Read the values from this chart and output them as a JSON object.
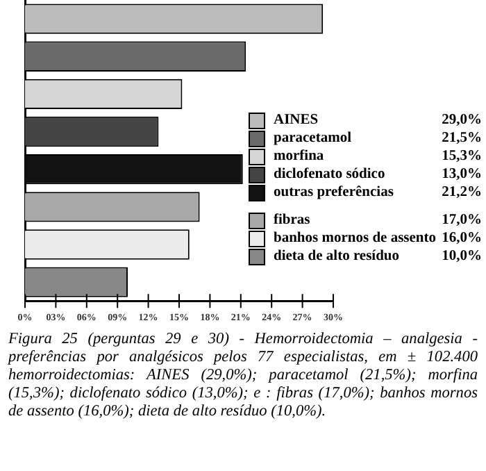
{
  "chart_data": {
    "type": "bar",
    "orientation": "horizontal",
    "categories": [
      null,
      null,
      null,
      null,
      null,
      null,
      null,
      null
    ],
    "series": [
      {
        "name": "AINES",
        "color": "#bcbcbc",
        "values": [
          29.0,
          null,
          null,
          null,
          null,
          null,
          null,
          null
        ]
      },
      {
        "name": "paracetamol",
        "color": "#6a6a6a",
        "values": [
          null,
          21.5,
          null,
          null,
          null,
          null,
          null,
          null
        ]
      },
      {
        "name": "morfina",
        "color": "#d6d6d6",
        "values": [
          null,
          null,
          15.3,
          null,
          null,
          null,
          null,
          null
        ]
      },
      {
        "name": "diclofenato sódico",
        "color": "#444444",
        "values": [
          null,
          null,
          null,
          13.0,
          null,
          null,
          null,
          null
        ]
      },
      {
        "name": "outras preferências",
        "color": "#111111",
        "values": [
          null,
          null,
          null,
          null,
          21.2,
          null,
          null,
          null
        ]
      },
      {
        "name": "fibras",
        "color": "#a8a8a8",
        "values": [
          null,
          null,
          null,
          null,
          null,
          17.0,
          null,
          null
        ]
      },
      {
        "name": "banhos mornos de assento",
        "color": "#ececec",
        "values": [
          null,
          null,
          null,
          null,
          null,
          null,
          16.0,
          null
        ]
      },
      {
        "name": "dieta de alto resíduo",
        "color": "#888888",
        "values": [
          null,
          null,
          null,
          null,
          null,
          null,
          null,
          10.0
        ]
      }
    ],
    "xlim": [
      0,
      30
    ],
    "xticks": [
      {
        "value": 0,
        "label": "0%"
      },
      {
        "value": 3,
        "label": "03%"
      },
      {
        "value": 6,
        "label": "06%"
      },
      {
        "value": 9,
        "label": "09%"
      },
      {
        "value": 12,
        "label": "12%"
      },
      {
        "value": 15,
        "label": "15%"
      },
      {
        "value": 18,
        "label": "18%"
      },
      {
        "value": 21,
        "label": "21%"
      },
      {
        "value": 24,
        "label": "24%"
      },
      {
        "value": 27,
        "label": "27%"
      },
      {
        "value": 30,
        "label": "30%"
      }
    ],
    "tick_labels": "x",
    "grid": false,
    "legend": "right",
    "annotations": [
      "Figura 25 (perguntas 29 e 30) - Hemorroidectomia – analgesia - preferências por analgésicos pelos 77 especialistas, em ± 102.400 hemorroidectomias: AINES (29,0%); paracetamol (21,5%); morfina (15,3%); diclofenato sódico (13,0%); e : fibras (17,0%); banhos mornos de assento (16,0%); dieta de alto resíduo (10,0%).",
      "29,0%",
      "21,5%",
      "15,3%",
      "13,0%",
      "21,2%",
      "17,0%",
      "16,0%",
      "10,0%"
    ]
  }
}
